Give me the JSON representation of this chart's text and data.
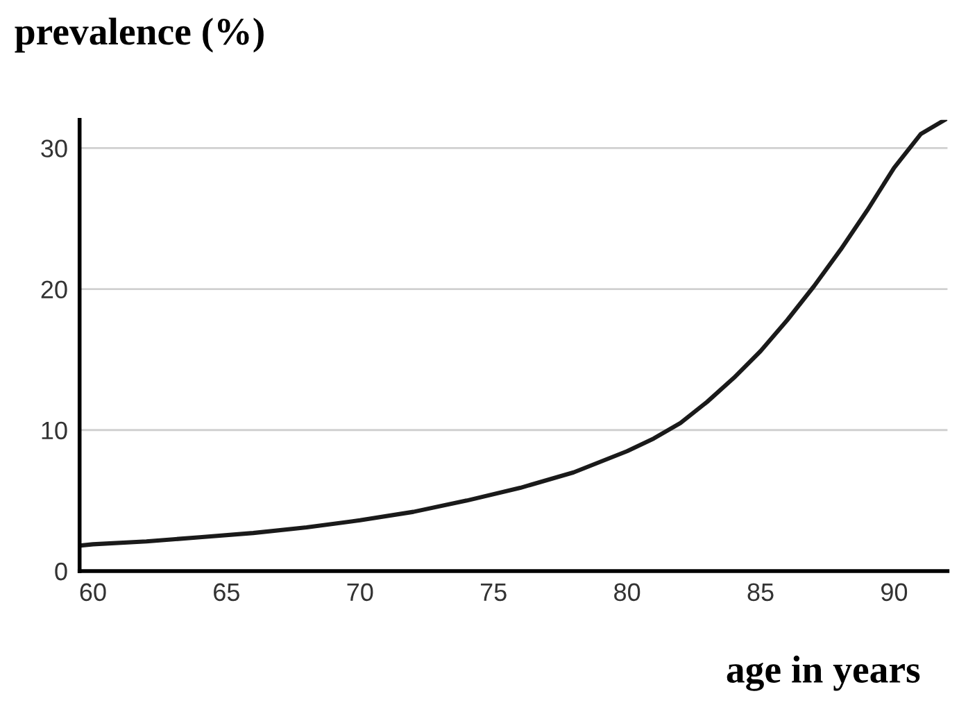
{
  "chart_data": {
    "type": "line",
    "title": "prevalence (%)",
    "xlabel": "age in years",
    "x": [
      59.5,
      60,
      62,
      64,
      66,
      68,
      70,
      72,
      74,
      76,
      78,
      80,
      81,
      82,
      83,
      84,
      85,
      86,
      87,
      88,
      89,
      90,
      91,
      91.9
    ],
    "series": [
      {
        "color": "#1a1a1a",
        "values": [
          1.8,
          1.9,
          2.1,
          2.4,
          2.7,
          3.1,
          3.6,
          4.2,
          5.0,
          5.9,
          7.0,
          8.5,
          9.4,
          10.5,
          12.0,
          13.7,
          15.6,
          17.8,
          20.2,
          22.8,
          25.6,
          28.6,
          31.0,
          32.0
        ]
      }
    ],
    "xlim": [
      59.5,
      92
    ],
    "ylim": [
      0,
      32
    ],
    "xticks": [
      60,
      65,
      70,
      75,
      80,
      85,
      90
    ],
    "yticks": [
      0,
      10,
      20,
      30
    ],
    "grid": "y",
    "legend": false,
    "marker": "none",
    "line_style": "solid"
  }
}
